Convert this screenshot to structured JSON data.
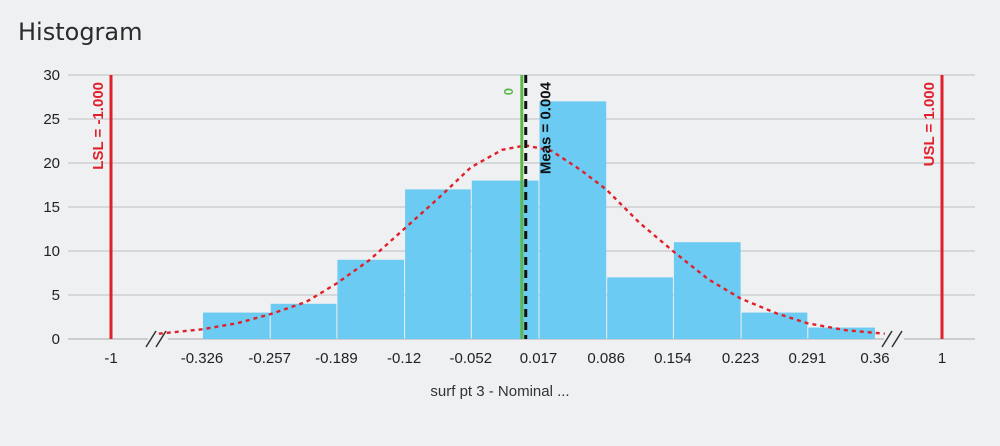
{
  "title": "Histogram",
  "chart_data": {
    "type": "bar",
    "title": "Histogram",
    "xlabel": "surf pt 3 - Nominal ...",
    "ylabel": "",
    "ylim": [
      0,
      30
    ],
    "yticks": [
      0,
      5,
      10,
      15,
      20,
      25,
      30
    ],
    "grid": true,
    "x_tick_labels": [
      "-1",
      "-0.326",
      "-0.257",
      "-0.189",
      "-0.12",
      "-0.052",
      "0.017",
      "0.086",
      "0.154",
      "0.223",
      "0.291",
      "0.36",
      "1"
    ],
    "categories": [
      "-0.326",
      "-0.257",
      "-0.189",
      "-0.12",
      "-0.052",
      "0.017",
      "0.086",
      "0.154",
      "0.223",
      "0.291"
    ],
    "values": [
      3,
      4,
      9,
      17,
      18,
      27,
      7,
      11,
      3,
      1.3
    ],
    "bin_edges": [
      -0.326,
      -0.257,
      -0.189,
      -0.12,
      -0.052,
      0.017,
      0.086,
      0.154,
      0.223,
      0.291,
      0.36
    ],
    "axis_break": true,
    "bar_color": "#6ccbf2",
    "normal_curve": {
      "color": "#e0202a",
      "style": "dotted",
      "mean": 0.004,
      "points": [
        [
          -0.37,
          0.6
        ],
        [
          -0.326,
          1.1
        ],
        [
          -0.29,
          1.8
        ],
        [
          -0.257,
          2.8
        ],
        [
          -0.22,
          4.2
        ],
        [
          -0.189,
          6.3
        ],
        [
          -0.155,
          9.0
        ],
        [
          -0.12,
          12.5
        ],
        [
          -0.085,
          16.0
        ],
        [
          -0.052,
          19.5
        ],
        [
          -0.02,
          21.5
        ],
        [
          0.004,
          22.0
        ],
        [
          0.03,
          21.4
        ],
        [
          0.06,
          19.2
        ],
        [
          0.086,
          17.0
        ],
        [
          0.12,
          13.2
        ],
        [
          0.154,
          10.0
        ],
        [
          0.19,
          6.8
        ],
        [
          0.223,
          4.6
        ],
        [
          0.26,
          2.9
        ],
        [
          0.291,
          1.8
        ],
        [
          0.33,
          1.0
        ],
        [
          0.37,
          0.6
        ]
      ]
    },
    "reference_lines": [
      {
        "label": "LSL = -1.000",
        "x": -1.0,
        "color": "#e0202a",
        "style": "solid"
      },
      {
        "label": "USL = 1.000",
        "x": 1.0,
        "color": "#e0202a",
        "style": "solid"
      },
      {
        "label": "0",
        "x": 0.0,
        "color": "#5cb848",
        "style": "solid"
      },
      {
        "label": "Meas = 0.004",
        "x": 0.004,
        "color": "#111111",
        "style": "dashed"
      }
    ]
  }
}
